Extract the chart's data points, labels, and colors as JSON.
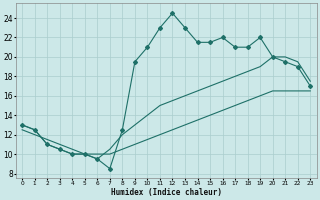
{
  "xlabel": "Humidex (Indice chaleur)",
  "bg_color": "#cce8e8",
  "grid_color": "#aacece",
  "line_color": "#1e7068",
  "xlim": [
    -0.5,
    23.5
  ],
  "ylim": [
    7.5,
    25.5
  ],
  "xticks": [
    0,
    1,
    2,
    3,
    4,
    5,
    6,
    7,
    8,
    9,
    10,
    11,
    12,
    13,
    14,
    15,
    16,
    17,
    18,
    19,
    20,
    21,
    22,
    23
  ],
  "yticks": [
    8,
    10,
    12,
    14,
    16,
    18,
    20,
    22,
    24
  ],
  "line1_x": [
    0,
    1,
    2,
    3,
    4,
    5,
    6,
    7,
    8,
    9,
    10,
    11,
    12,
    13,
    14,
    15,
    16,
    17,
    18,
    19,
    20,
    21,
    22,
    23
  ],
  "line1_y": [
    13.0,
    12.5,
    11.0,
    10.5,
    10.0,
    10.0,
    9.5,
    8.5,
    12.5,
    19.5,
    21.0,
    23.0,
    24.5,
    23.0,
    21.5,
    21.5,
    22.0,
    21.0,
    21.0,
    22.0,
    20.0,
    19.5,
    19.0,
    17.0
  ],
  "line2_x": [
    0,
    1,
    2,
    3,
    4,
    5,
    6,
    7,
    8,
    9,
    10,
    11,
    12,
    13,
    14,
    15,
    16,
    17,
    18,
    19,
    20,
    21,
    22,
    23
  ],
  "line2_y": [
    12.5,
    12.0,
    11.5,
    11.0,
    10.5,
    10.0,
    10.0,
    10.0,
    10.5,
    11.0,
    11.5,
    12.0,
    12.5,
    13.0,
    13.5,
    14.0,
    14.5,
    15.0,
    15.5,
    16.0,
    16.5,
    16.5,
    16.5,
    16.5
  ],
  "line3_x": [
    0,
    1,
    2,
    3,
    4,
    5,
    6,
    7,
    8,
    9,
    10,
    11,
    12,
    13,
    14,
    15,
    16,
    17,
    18,
    19,
    20,
    21,
    22,
    23
  ],
  "line3_y": [
    13.0,
    12.5,
    11.0,
    10.5,
    10.0,
    10.0,
    9.5,
    10.5,
    12.0,
    13.0,
    14.0,
    15.0,
    15.5,
    16.0,
    16.5,
    17.0,
    17.5,
    18.0,
    18.5,
    19.0,
    20.0,
    20.0,
    19.5,
    17.5
  ]
}
